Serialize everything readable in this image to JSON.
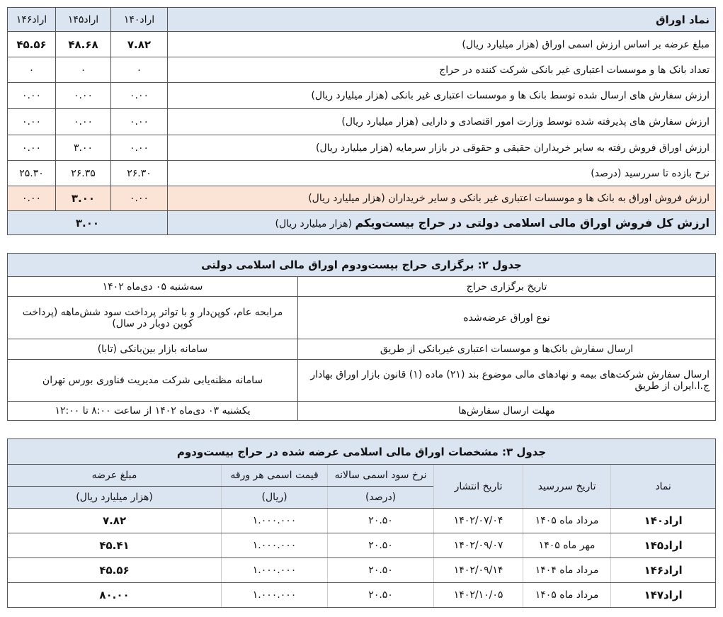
{
  "table1": {
    "header": {
      "label": "نماد اوراق",
      "cols": [
        "اراد۱۴۰",
        "اراد۱۴۵",
        "اراد۱۴۶"
      ]
    },
    "rows": [
      {
        "label": "مبلغ عرضه بر اساس ارزش اسمی اوراق (هزار میلیارد ریال)",
        "values": [
          "۷.۸۲",
          "۴۸.۶۸",
          "۴۵.۵۶"
        ]
      },
      {
        "label": "تعداد بانک ها و موسسات اعتباری غیر بانکی شرکت کننده در حراج",
        "values": [
          "۰",
          "۰",
          "۰"
        ]
      },
      {
        "label": "ارزش سفارش های ارسال شده توسط بانک ها و موسسات اعتباری غیر بانکی (هزار میلیارد ریال)",
        "values": [
          "۰.۰۰",
          "۰.۰۰",
          "۰.۰۰"
        ]
      },
      {
        "label": "ارزش سفارش های پذیرفته شده توسط وزارت امور اقتصادی و دارایی (هزار میلیارد ریال)",
        "values": [
          "۰.۰۰",
          "۰.۰۰",
          "۰.۰۰"
        ]
      },
      {
        "label": "ارزش اوراق فروش رفته به سایر خریداران حقیقی و حقوقی در بازار سرمایه (هزار میلیارد ریال)",
        "values": [
          "۰.۰۰",
          "۳.۰۰",
          "۰.۰۰"
        ]
      },
      {
        "label": "نرخ بازده تا سررسید (درصد)",
        "values": [
          "۲۶.۳۰",
          "۲۶.۳۵",
          "۲۵.۳۰"
        ]
      },
      {
        "label": "ارزش فروش اوراق به بانک ها و موسسات اعتباری غیر بانکی و سایر خریداران (هزار میلیارد ریال)",
        "values": [
          "۰.۰۰",
          "۳.۰۰",
          "۰.۰۰"
        ]
      }
    ],
    "total": {
      "label_bold": "ارزش کل فروش اوراق مالی اسلامی دولتی در حراج بیست‌ویکم",
      "label_unit": "(هزار میلیارد ریال)",
      "value": "۳.۰۰"
    },
    "colors": {
      "header": "#dbe5f1",
      "highlight": "#fbe4d5"
    }
  },
  "table2": {
    "title": "جدول ۲: برگزاری حراج بیست‌ودوم اوراق مالی اسلامی دولتی",
    "rows": [
      {
        "label": "تاریخ برگزاری حراج",
        "value": "سه‌شنبه ۰۵ دی‌ماه ۱۴۰۲"
      },
      {
        "label": "نوع اوراق عرضه‌شده",
        "value": "مرابحه عام، کوپن‌دار و با تواتر پرداخت سود شش‌ماهه (پرداخت کوپن دوبار در سال)"
      },
      {
        "label": "ارسال سفارش بانک‌ها و موسسات اعتباری غیربانکی از طریق",
        "value": "سامانه بازار بین‌بانکی (تابا)"
      },
      {
        "label": "ارسال سفارش شرکت‌های بیمه و نهادهای مالی موضوع بند (۲۱) ماده (۱) قانون بازار اوراق بهادار ج.ا.ایران از طریق",
        "value": "سامانه مظنه‌یابی شرکت مدیریت فناوری بورس تهران"
      },
      {
        "label": "مهلت ارسال سفارش‌ها",
        "value": "یکشنبه ۰۳ دی‌ماه ۱۴۰۲ از ساعت ۸:۰۰ تا ۱۲:۰۰"
      }
    ]
  },
  "table3": {
    "title": "جدول ۳: مشخصات اوراق مالی اسلامی عرضه شده در حراج بیست‌ودوم",
    "headers": {
      "symbol": "نماد",
      "maturity": "تاریخ سررسید",
      "issue": "تاریخ انتشار",
      "rate": "نرخ سود اسمی سالانه",
      "rate_unit": "(درصد)",
      "price": "قیمت اسمی هر ورقه",
      "price_unit": "(ریال)",
      "amount": "مبلغ عرضه",
      "amount_unit": "(هزار میلیارد ریال)"
    },
    "rows": [
      {
        "symbol": "اراد۱۴۰",
        "maturity": "مرداد ماه ۱۴۰۵",
        "issue": "۱۴۰۲/۰۷/۰۴",
        "rate": "۲۰.۵۰",
        "price": "۱.۰۰۰.۰۰۰",
        "amount": "۷.۸۲"
      },
      {
        "symbol": "اراد۱۴۵",
        "maturity": "مهر ماه ۱۴۰۵",
        "issue": "۱۴۰۲/۰۹/۰۷",
        "rate": "۲۰.۵۰",
        "price": "۱.۰۰۰.۰۰۰",
        "amount": "۴۵.۴۱"
      },
      {
        "symbol": "اراد۱۴۶",
        "maturity": "مرداد ماه ۱۴۰۴",
        "issue": "۱۴۰۲/۰۹/۱۴",
        "rate": "۲۰.۵۰",
        "price": "۱.۰۰۰.۰۰۰",
        "amount": "۴۵.۵۶"
      },
      {
        "symbol": "اراد۱۴۷",
        "maturity": "مرداد ماه ۱۴۰۵",
        "issue": "۱۴۰۲/۱۰/۰۵",
        "rate": "۲۰.۵۰",
        "price": "۱.۰۰۰.۰۰۰",
        "amount": "۸۰.۰۰"
      }
    ]
  }
}
